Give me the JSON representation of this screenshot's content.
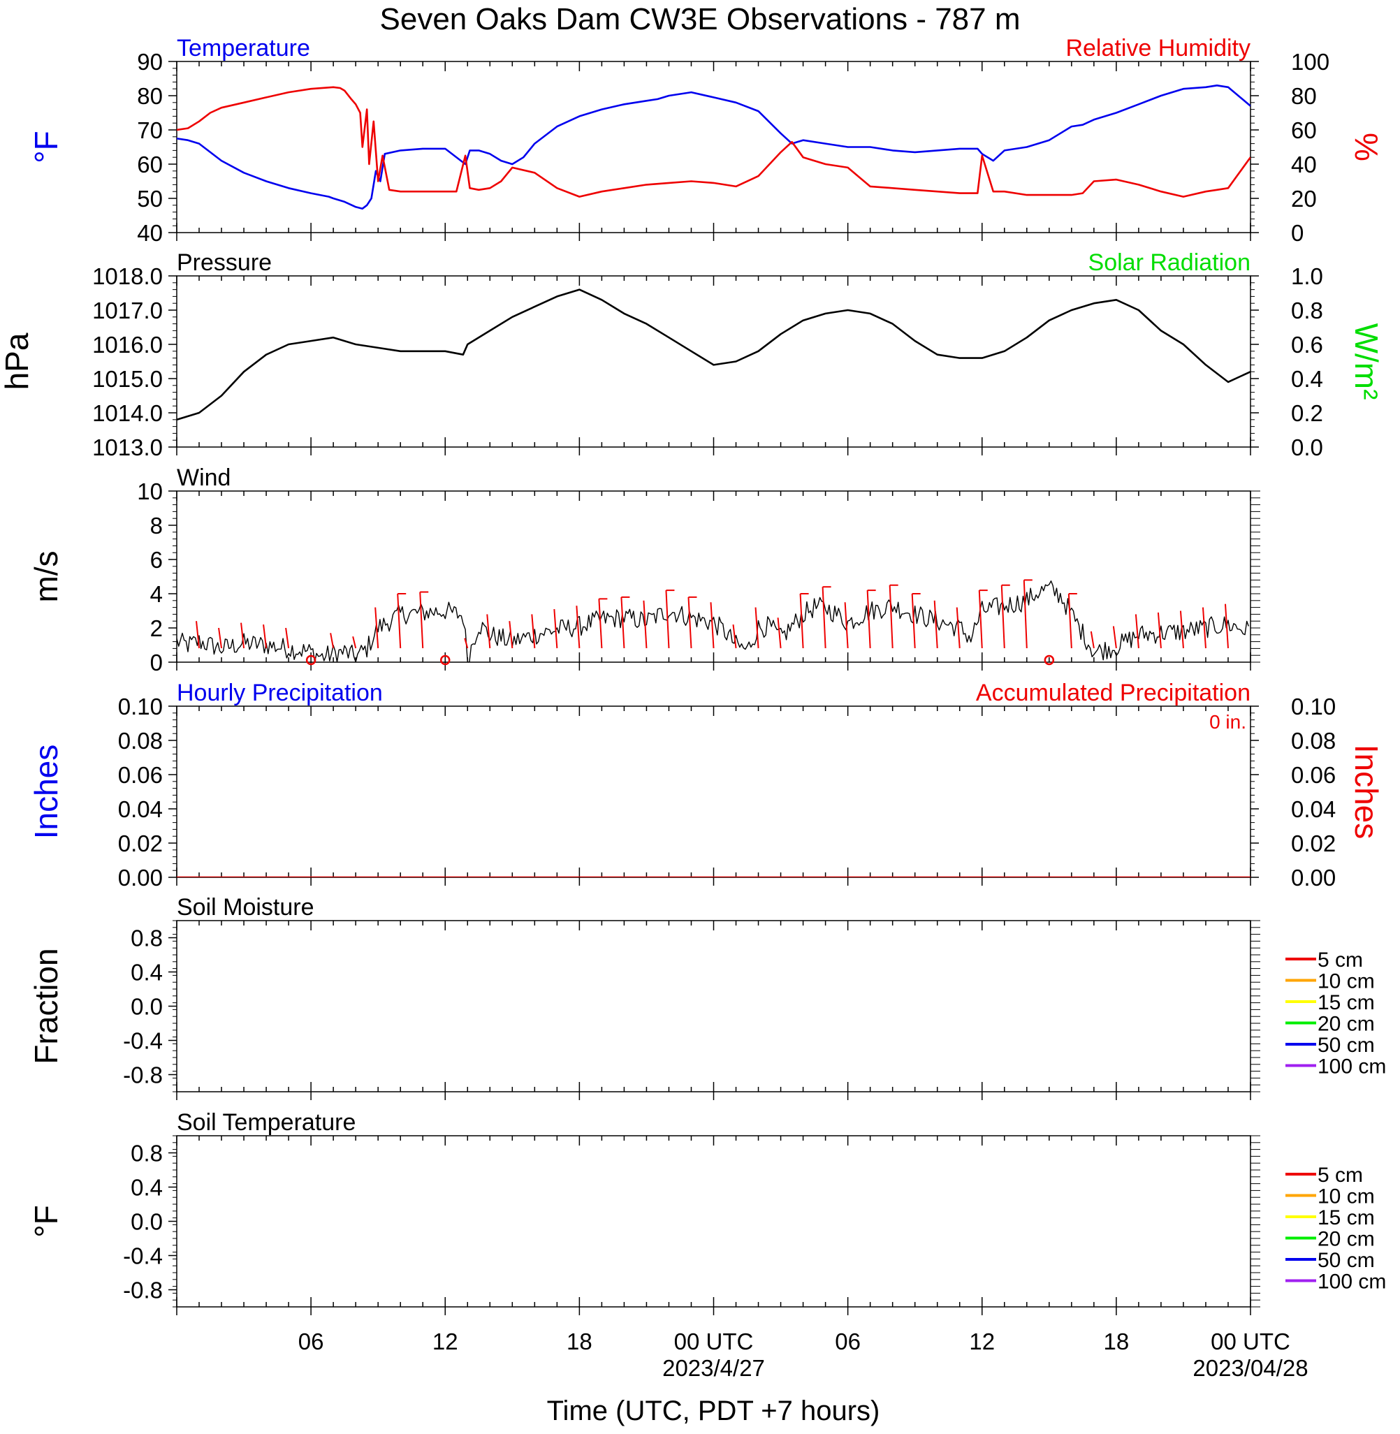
{
  "title": "Seven Oaks Dam CW3E Observations - 787 m",
  "x_axis": {
    "label": "Time (UTC, PDT +7 hours)",
    "ticks": [
      {
        "hour": 6,
        "label": "06",
        "date": ""
      },
      {
        "hour": 12,
        "label": "12",
        "date": ""
      },
      {
        "hour": 18,
        "label": "18",
        "date": ""
      },
      {
        "hour": 24,
        "label": "00 UTC",
        "date": "2023/4/27"
      },
      {
        "hour": 30,
        "label": "06",
        "date": ""
      },
      {
        "hour": 36,
        "label": "12",
        "date": ""
      },
      {
        "hour": 42,
        "label": "18",
        "date": ""
      },
      {
        "hour": 48,
        "label": "00 UTC",
        "date": "2023/04/28"
      }
    ]
  },
  "colors": {
    "temperature": "#0000ee",
    "humidity": "#ee0000",
    "solar": "#00dd00",
    "pressure": "#000000",
    "wind": "#000000",
    "wind_barb": "#ee0000",
    "accum_precip": "#cc0000"
  },
  "chart_data": [
    {
      "type": "line",
      "panel": "temperature_humidity",
      "left_title": "Temperature",
      "right_title": "Relative Humidity",
      "ylabel_left": "°F",
      "ylabel_right": "%",
      "ylim_left": [
        40,
        90
      ],
      "ylim_right": [
        0,
        100
      ],
      "yticks_left": [
        "90",
        "80",
        "70",
        "60",
        "50",
        "40"
      ],
      "yticks_right": [
        "100",
        "80",
        "60",
        "40",
        "20",
        "0"
      ],
      "xlim": [
        0,
        48
      ],
      "series": [
        {
          "name": "Temperature",
          "axis": "left",
          "x": [
            0,
            0.5,
            1,
            1.5,
            2,
            3,
            4,
            5,
            6,
            6.8,
            7,
            7.5,
            8,
            8.3,
            8.5,
            8.7,
            8.9,
            9.1,
            9.3,
            10,
            11,
            12,
            12.9,
            13.1,
            13.5,
            14,
            14.5,
            15,
            15.5,
            16,
            17,
            18,
            19,
            20,
            21,
            21.5,
            22,
            23,
            24,
            25,
            26,
            27,
            27.5,
            28,
            29,
            30,
            31,
            32,
            33,
            34,
            35,
            35.8,
            36,
            36.5,
            37,
            38,
            39,
            40,
            40.5,
            41,
            42,
            43,
            44,
            45,
            46,
            46.5,
            47,
            48
          ],
          "y": [
            67.5,
            67,
            66,
            63.5,
            61,
            57.5,
            55,
            53,
            51.5,
            50.5,
            50,
            49,
            47.5,
            47,
            48,
            50,
            58,
            55,
            63,
            64,
            64.5,
            64.5,
            60,
            64,
            64,
            63,
            61,
            60,
            62,
            66,
            71,
            74,
            76,
            77.5,
            78.5,
            79,
            80,
            81,
            79.5,
            78,
            75.5,
            69,
            66,
            67,
            66,
            65,
            65,
            64,
            63.5,
            64,
            64.5,
            64.5,
            63,
            61,
            64,
            65,
            67,
            71,
            71.5,
            73,
            75,
            77.5,
            80,
            82,
            82.5,
            83,
            82.5,
            77
          ]
        },
        {
          "name": "Relative Humidity",
          "axis": "right",
          "x": [
            0,
            0.5,
            1,
            1.5,
            2,
            3,
            4,
            5,
            6,
            7,
            7.3,
            7.5,
            7.8,
            8,
            8.2,
            8.3,
            8.5,
            8.6,
            8.8,
            9,
            9.2,
            9.5,
            10,
            11,
            12,
            12.5,
            12.9,
            13.1,
            13.5,
            14,
            14.5,
            15,
            16,
            17,
            18,
            19,
            20,
            21,
            22,
            23,
            24,
            25,
            26,
            27,
            27.5,
            28,
            29,
            30,
            31,
            32,
            33,
            34,
            35,
            35.8,
            36,
            36.5,
            37,
            38,
            39,
            40,
            40.5,
            41,
            42,
            43,
            44,
            45,
            46,
            46.5,
            47,
            48
          ],
          "y": [
            60,
            61,
            65,
            70,
            73,
            76,
            79,
            82,
            84,
            85,
            84.5,
            83,
            78,
            75,
            70,
            50,
            72,
            40,
            65,
            30,
            45,
            25,
            24,
            24,
            24,
            24,
            45,
            26,
            25,
            26,
            30,
            38,
            35,
            26,
            21,
            24,
            26,
            28,
            29,
            30,
            29,
            27,
            33,
            47,
            53,
            44,
            40,
            38,
            27,
            26,
            25,
            24,
            23,
            23,
            45,
            24,
            24,
            22,
            22,
            22,
            23,
            30,
            31,
            28,
            24,
            21,
            24,
            25,
            26,
            44
          ]
        }
      ]
    },
    {
      "type": "line",
      "panel": "pressure_solar",
      "left_title": "Pressure",
      "right_title": "Solar Radiation",
      "ylabel_left": "hPa",
      "ylabel_right": "W/m²",
      "ylim_left": [
        1013,
        1018
      ],
      "ylim_right": [
        0,
        1
      ],
      "yticks_left": [
        "1018.0",
        "1017.0",
        "1016.0",
        "1015.0",
        "1014.0",
        "1013.0"
      ],
      "yticks_right": [
        "1.0",
        "0.8",
        "0.6",
        "0.4",
        "0.2",
        "0.0"
      ],
      "xlim": [
        0,
        48
      ],
      "series": [
        {
          "name": "Pressure",
          "axis": "left",
          "x": [
            0,
            1,
            2,
            3,
            4,
            5,
            6,
            7,
            8,
            9,
            10,
            11,
            12,
            12.8,
            13,
            14,
            15,
            16,
            17,
            18,
            19,
            20,
            21,
            22,
            23,
            24,
            25,
            26,
            27,
            28,
            29,
            30,
            31,
            32,
            33,
            34,
            35,
            36,
            37,
            38,
            39,
            40,
            41,
            42,
            43,
            44,
            45,
            46,
            47,
            48
          ],
          "y": [
            1013.8,
            1014.0,
            1014.5,
            1015.2,
            1015.7,
            1016.0,
            1016.1,
            1016.2,
            1016.0,
            1015.9,
            1015.8,
            1015.8,
            1015.8,
            1015.7,
            1016.0,
            1016.4,
            1016.8,
            1017.1,
            1017.4,
            1017.6,
            1017.3,
            1016.9,
            1016.6,
            1016.2,
            1015.8,
            1015.4,
            1015.5,
            1015.8,
            1016.3,
            1016.7,
            1016.9,
            1017.0,
            1016.9,
            1016.6,
            1016.1,
            1015.7,
            1015.6,
            1015.6,
            1015.8,
            1016.2,
            1016.7,
            1017.0,
            1017.2,
            1017.3,
            1017.0,
            1016.4,
            1016.0,
            1015.4,
            1014.9,
            1015.2
          ]
        }
      ]
    },
    {
      "type": "line",
      "panel": "wind",
      "left_title": "Wind",
      "ylabel_left": "m/s",
      "ylim_left": [
        0,
        10
      ],
      "yticks_left": [
        "10",
        "8",
        "6",
        "4",
        "2",
        "0"
      ],
      "xlim": [
        0,
        48
      ],
      "series": [
        {
          "name": "Wind",
          "axis": "left",
          "x": [
            0,
            0.5,
            1,
            1.5,
            2,
            3,
            4,
            5,
            6,
            6.5,
            7,
            7.5,
            8,
            8.5,
            9,
            10,
            11,
            12,
            12.8,
            13,
            13.5,
            14,
            15,
            16,
            17,
            18,
            19,
            20,
            21,
            22,
            23,
            24,
            24.5,
            25,
            25.5,
            26,
            26.5,
            27,
            28,
            28.5,
            29,
            29.5,
            30,
            31,
            32,
            33,
            34,
            35,
            35.5,
            36,
            37,
            38,
            38.5,
            39,
            39.5,
            40,
            41,
            42,
            43,
            44,
            45,
            46,
            47,
            48
          ],
          "y": [
            1.2,
            1.0,
            1.2,
            1.0,
            0.8,
            1.1,
            1.0,
            0.8,
            0.6,
            0.3,
            0.5,
            0.6,
            0.3,
            0.8,
            2.0,
            2.8,
            2.9,
            3.0,
            2.7,
            0.2,
            2.2,
            1.6,
            1.2,
            1.6,
            1.9,
            2.1,
            2.5,
            2.6,
            2.4,
            3.0,
            2.6,
            2.3,
            1.8,
            1.0,
            0.7,
            2.0,
            2.1,
            1.4,
            2.8,
            3.2,
            3.2,
            2.8,
            2.3,
            3.0,
            3.3,
            2.8,
            2.4,
            2.0,
            1.4,
            3.0,
            3.3,
            3.6,
            4.1,
            4.3,
            3.9,
            2.8,
            0.6,
            0.9,
            1.6,
            1.7,
            1.8,
            2.0,
            2.2,
            1.8
          ]
        }
      ],
      "calm_markers_hours": [
        6,
        12,
        39
      ]
    },
    {
      "type": "line",
      "panel": "precipitation",
      "left_title": "Hourly Precipitation",
      "right_title": "Accumulated Precipitation",
      "annotation": "0 in.",
      "ylabel_left": "Inches",
      "ylabel_right": "Inches",
      "ylim_left": [
        0,
        0.1
      ],
      "ylim_right": [
        0,
        0.1
      ],
      "yticks_left": [
        "0.10",
        "0.08",
        "0.06",
        "0.04",
        "0.02",
        "0.00"
      ],
      "yticks_right": [
        "0.10",
        "0.08",
        "0.06",
        "0.04",
        "0.02",
        "0.00"
      ],
      "xlim": [
        0,
        48
      ],
      "series": [
        {
          "name": "Accumulated Precipitation",
          "axis": "right",
          "x": [
            0,
            48
          ],
          "y": [
            0,
            0
          ]
        }
      ]
    },
    {
      "type": "line",
      "panel": "soil_moisture",
      "left_title": "Soil Moisture",
      "ylabel_left": "Fraction",
      "ylim_left": [
        -1,
        1
      ],
      "yticks_left": [
        "0.8",
        "0.4",
        "0.0",
        "-0.4",
        "-0.8"
      ],
      "xlim": [
        0,
        48
      ],
      "legend": [
        {
          "label": "5 cm",
          "color": "#ee0000"
        },
        {
          "label": "10 cm",
          "color": "#ffa500"
        },
        {
          "label": "15 cm",
          "color": "#ffff00"
        },
        {
          "label": "20 cm",
          "color": "#00ee00"
        },
        {
          "label": "50 cm",
          "color": "#0000ee"
        },
        {
          "label": "100 cm",
          "color": "#a020f0"
        }
      ],
      "series": []
    },
    {
      "type": "line",
      "panel": "soil_temperature",
      "left_title": "Soil Temperature",
      "ylabel_left": "°F",
      "ylim_left": [
        -1,
        1
      ],
      "yticks_left": [
        "0.8",
        "0.4",
        "0.0",
        "-0.4",
        "-0.8"
      ],
      "xlim": [
        0,
        48
      ],
      "legend": [
        {
          "label": "5 cm",
          "color": "#ee0000"
        },
        {
          "label": "10 cm",
          "color": "#ffa500"
        },
        {
          "label": "15 cm",
          "color": "#ffff00"
        },
        {
          "label": "20 cm",
          "color": "#00ee00"
        },
        {
          "label": "50 cm",
          "color": "#0000ee"
        },
        {
          "label": "100 cm",
          "color": "#a020f0"
        }
      ],
      "series": []
    }
  ]
}
